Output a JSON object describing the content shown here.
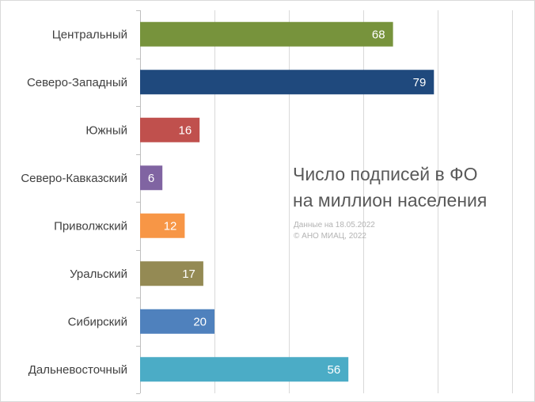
{
  "chart_data": {
    "type": "bar",
    "orientation": "horizontal",
    "title_lines": [
      "Число подписей в ФО",
      "на миллион населения"
    ],
    "note_lines": [
      "Данные на 18.05.2022",
      "© АНО МИАЦ, 2022"
    ],
    "categories": [
      "Центральный",
      "Северо-Западный",
      "Южный",
      "Северо-Кавказский",
      "Приволжский",
      "Уральский",
      "Сибирский",
      "Дальневосточный"
    ],
    "values": [
      68,
      79,
      16,
      6,
      12,
      17,
      20,
      56
    ],
    "colors": [
      "#77933c",
      "#1f497d",
      "#c0504d",
      "#8064a2",
      "#f79646",
      "#948a54",
      "#4f81bd",
      "#4bacc6"
    ],
    "xlim": [
      0,
      100
    ],
    "grid": true,
    "data_labels": true
  }
}
